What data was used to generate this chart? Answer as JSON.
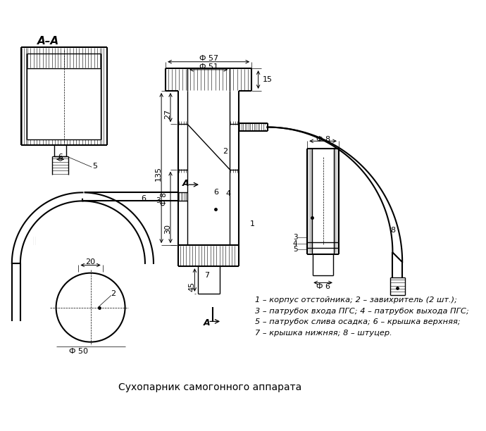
{
  "title": "Сухопарник самогонного аппарата",
  "legend_lines": [
    "1 – корпус отстойника; 2 – завихритель (2 шт.);",
    "3 – патрубок входа ПГС; 4 – патрубок выхода ПГС;",
    "5 – патрубок слива осадка; 6 – крышка верхняя;",
    "7 – крышка нижняя; 8 – штуцер."
  ],
  "bg_color": "#ffffff",
  "line_color": "#000000"
}
